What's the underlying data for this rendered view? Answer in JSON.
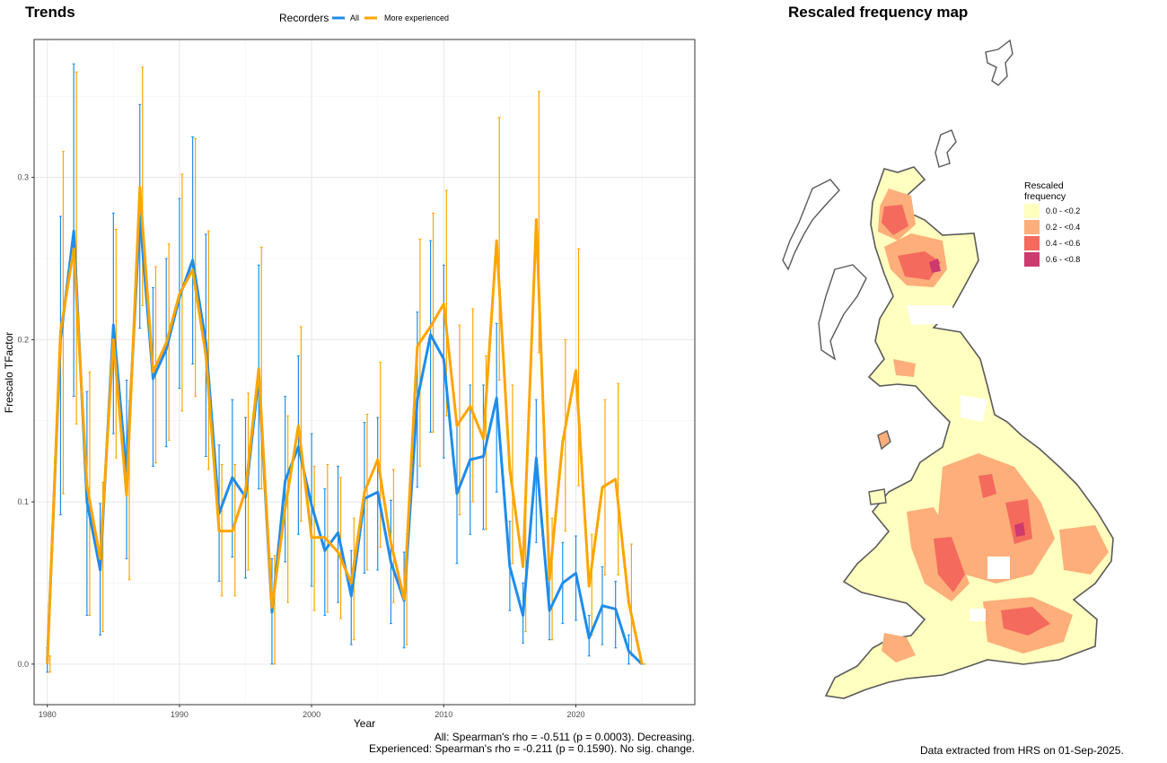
{
  "trends_title": "Trends",
  "map_title": "Rescaled frequency map",
  "legend": {
    "title": "Recorders",
    "items": [
      {
        "label": "All",
        "color": "#1f8ceb"
      },
      {
        "label": "More experienced",
        "color": "#ffa500"
      }
    ]
  },
  "stats": {
    "line1": "All: Spearman's rho = -0.511 (p = 0.0003). Decreasing.",
    "line2": "Experienced: Spearman's rho = -0.211 (p = 0.1590). No sig. change."
  },
  "map_legend": {
    "title_line1": "Rescaled",
    "title_line2": "frequency",
    "items": [
      {
        "label": "0.0 - <0.2",
        "color": "#ffffbf"
      },
      {
        "label": "0.2 - <0.4",
        "color": "#fdae7a"
      },
      {
        "label": "0.4 - <0.6",
        "color": "#f46a5c"
      },
      {
        "label": "0.6 - <0.8",
        "color": "#cc3a6e"
      }
    ]
  },
  "map_note": "Data extracted from HRS on 01-Sep-2025.",
  "map": {
    "outline_color": "#5a5a5a"
  },
  "chart_data": {
    "type": "line",
    "title": "Trends",
    "xlabel": "Year",
    "ylabel": "Frescalo TFactor",
    "xlim": [
      1979,
      2029
    ],
    "ylim": [
      -0.025,
      0.385
    ],
    "xticks": [
      1980,
      1990,
      2000,
      2010,
      2020
    ],
    "yticks": [
      0.0,
      0.1,
      0.2,
      0.3
    ],
    "ytick_labels": [
      "0.0",
      "0.1",
      "0.2",
      "0.3"
    ],
    "grid": true,
    "legend_position": "top",
    "x": [
      1980,
      1981,
      1982,
      1983,
      1984,
      1985,
      1986,
      1987,
      1988,
      1989,
      1990,
      1991,
      1992,
      1993,
      1994,
      1995,
      1996,
      1997,
      1998,
      1999,
      2000,
      2001,
      2002,
      2003,
      2004,
      2005,
      2006,
      2007,
      2008,
      2009,
      2010,
      2011,
      2012,
      2013,
      2014,
      2015,
      2016,
      2017,
      2018,
      2019,
      2020,
      2021,
      2022,
      2023,
      2024,
      2025
    ],
    "series": [
      {
        "name": "All",
        "color": "#1f8ceb",
        "values": [
          0.002,
          0.2,
          0.267,
          0.1,
          0.058,
          0.209,
          0.118,
          0.276,
          0.176,
          0.194,
          0.226,
          0.249,
          0.198,
          0.093,
          0.115,
          0.103,
          0.177,
          0.032,
          0.113,
          0.134,
          0.098,
          0.07,
          0.081,
          0.042,
          0.102,
          0.106,
          0.063,
          0.039,
          0.163,
          0.203,
          0.188,
          0.105,
          0.126,
          0.128,
          0.164,
          0.06,
          0.03,
          0.127,
          0.033,
          0.05,
          0.056,
          0.016,
          0.036,
          0.034,
          0.008,
          0.0
        ],
        "lower": [
          -0.005,
          0.092,
          0.165,
          0.03,
          0.018,
          0.142,
          0.065,
          0.207,
          0.122,
          0.134,
          0.17,
          0.185,
          0.128,
          0.051,
          0.066,
          0.053,
          0.108,
          0.0,
          0.063,
          0.08,
          0.048,
          0.03,
          0.038,
          0.012,
          0.056,
          0.058,
          0.025,
          0.01,
          0.109,
          0.143,
          0.127,
          0.062,
          0.08,
          0.083,
          0.106,
          0.033,
          0.013,
          0.075,
          0.015,
          0.025,
          0.027,
          0.005,
          0.012,
          0.01,
          0.0,
          0.0
        ],
        "upper": [
          0.01,
          0.276,
          0.37,
          0.168,
          0.099,
          0.278,
          0.175,
          0.345,
          0.232,
          0.25,
          0.287,
          0.325,
          0.265,
          0.135,
          0.163,
          0.152,
          0.246,
          0.065,
          0.165,
          0.19,
          0.142,
          0.108,
          0.122,
          0.07,
          0.149,
          0.152,
          0.101,
          0.069,
          0.217,
          0.261,
          0.246,
          0.148,
          0.172,
          0.172,
          0.21,
          0.088,
          0.05,
          0.163,
          0.053,
          0.075,
          0.079,
          0.03,
          0.06,
          0.051,
          0.018,
          0.0
        ]
      },
      {
        "name": "More experienced",
        "color": "#ffa500",
        "values": [
          0.0,
          0.205,
          0.256,
          0.11,
          0.065,
          0.2,
          0.104,
          0.294,
          0.18,
          0.198,
          0.228,
          0.243,
          0.19,
          0.082,
          0.082,
          0.107,
          0.182,
          0.035,
          0.096,
          0.147,
          0.078,
          0.078,
          0.069,
          0.05,
          0.106,
          0.126,
          0.075,
          0.04,
          0.196,
          0.208,
          0.222,
          0.147,
          0.159,
          0.139,
          0.261,
          0.12,
          0.06,
          0.274,
          0.052,
          0.137,
          0.181,
          0.048,
          0.109,
          0.114,
          0.038,
          0.0
        ],
        "lower": [
          -0.005,
          0.105,
          0.148,
          0.03,
          0.02,
          0.127,
          0.052,
          0.221,
          0.124,
          0.138,
          0.156,
          0.165,
          0.12,
          0.042,
          0.042,
          0.058,
          0.108,
          0.0,
          0.038,
          0.088,
          0.033,
          0.032,
          0.028,
          0.015,
          0.058,
          0.072,
          0.038,
          0.012,
          0.122,
          0.143,
          0.153,
          0.092,
          0.1,
          0.083,
          0.175,
          0.062,
          0.02,
          0.192,
          0.015,
          0.082,
          0.11,
          0.018,
          0.055,
          0.055,
          0.005,
          0.0
        ],
        "upper": [
          0.005,
          0.316,
          0.365,
          0.18,
          0.112,
          0.268,
          0.162,
          0.368,
          0.245,
          0.259,
          0.302,
          0.324,
          0.267,
          0.123,
          0.123,
          0.167,
          0.257,
          0.067,
          0.153,
          0.208,
          0.122,
          0.123,
          0.115,
          0.09,
          0.154,
          0.186,
          0.12,
          0.08,
          0.262,
          0.278,
          0.292,
          0.209,
          0.219,
          0.19,
          0.337,
          0.172,
          0.1,
          0.353,
          0.09,
          0.2,
          0.256,
          0.08,
          0.163,
          0.173,
          0.074,
          0.0
        ]
      }
    ]
  }
}
